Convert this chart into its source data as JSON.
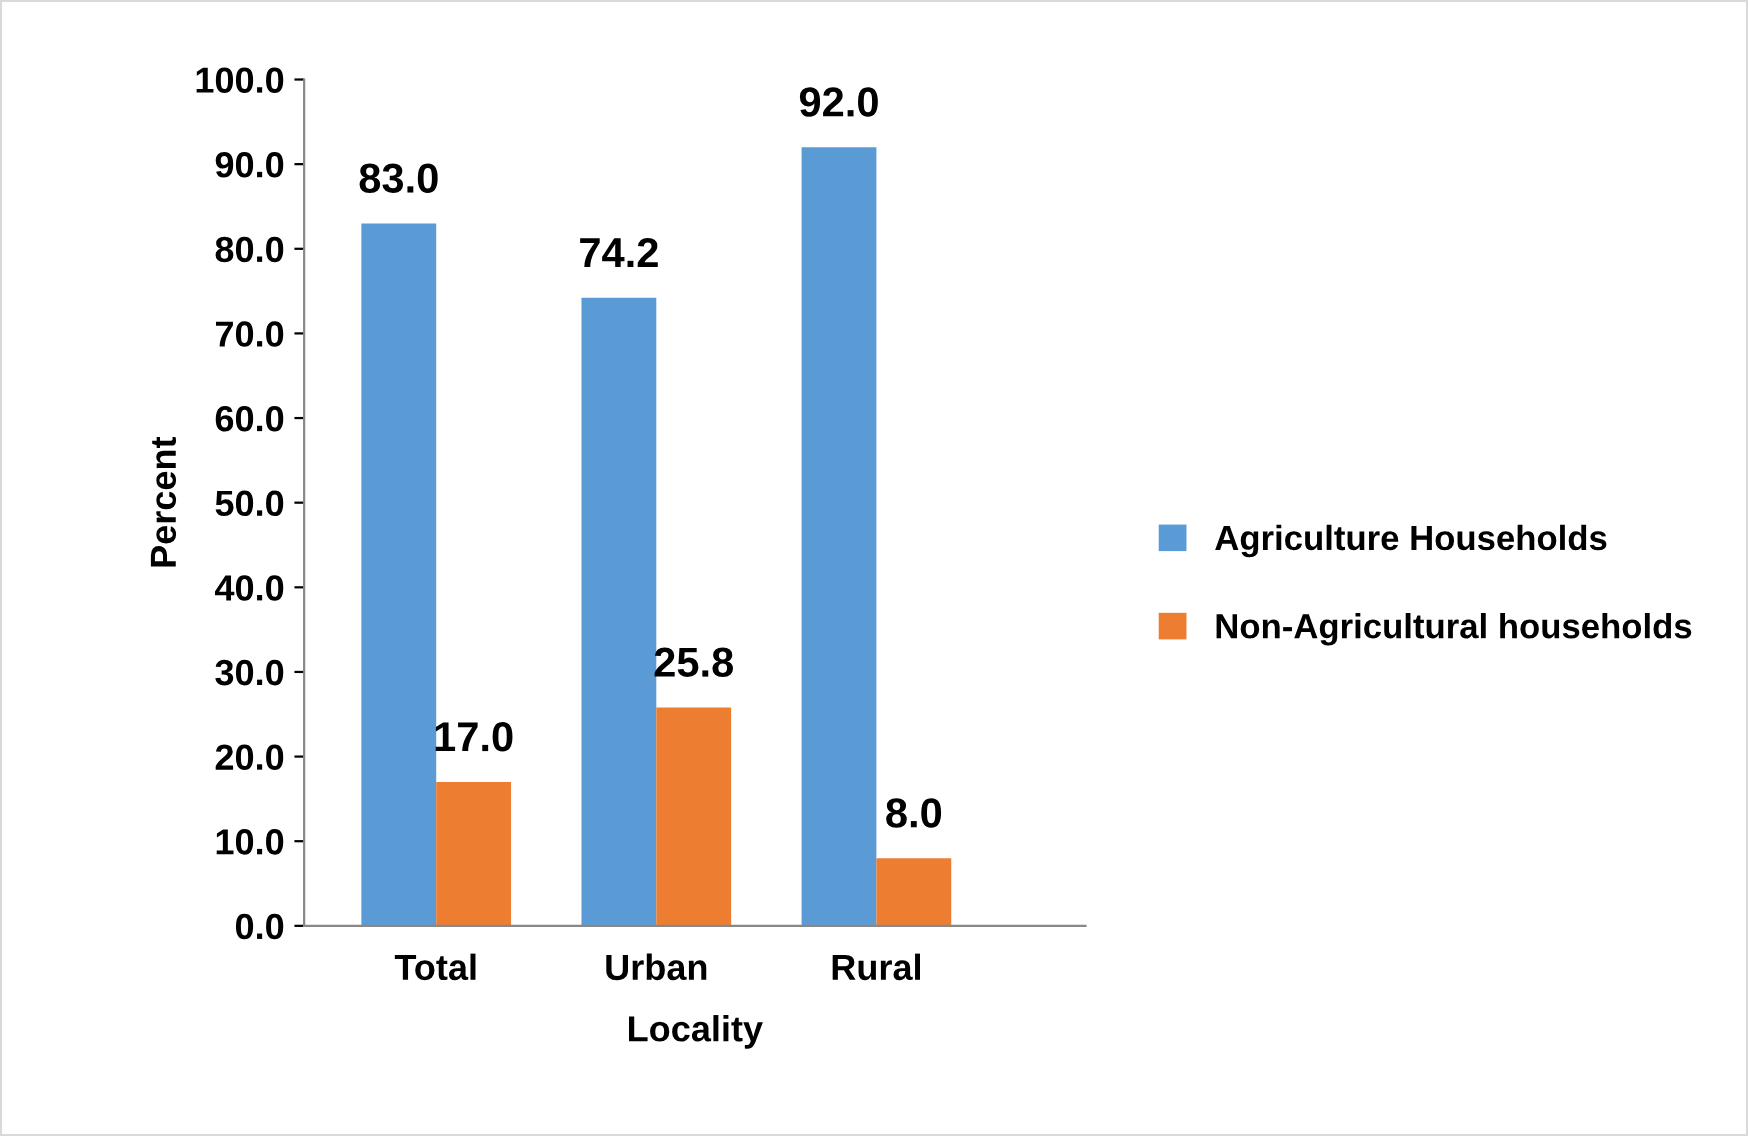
{
  "chart_data": {
    "type": "bar",
    "xlabel": "Locality",
    "ylabel": "Percent",
    "categories": [
      "Total",
      "Urban",
      "Rural"
    ],
    "series": [
      {
        "name": "Agriculture Households",
        "color": "#5b9bd5",
        "values": [
          83.0,
          74.2,
          92.0
        ],
        "value_labels": [
          "83.0",
          "74.2",
          "92.0"
        ]
      },
      {
        "name": "Non-Agricultural households",
        "color": "#ed7d31",
        "values": [
          17.0,
          25.8,
          8.0
        ],
        "value_labels": [
          "17.0",
          "25.8",
          "8.0"
        ]
      }
    ],
    "ylim": [
      0,
      100
    ],
    "yticks": [
      {
        "value": 0,
        "label": "0.0"
      },
      {
        "value": 10,
        "label": "10.0"
      },
      {
        "value": 20,
        "label": "20.0"
      },
      {
        "value": 30,
        "label": "30.0"
      },
      {
        "value": 40,
        "label": "40.0"
      },
      {
        "value": 50,
        "label": "50.0"
      },
      {
        "value": 60,
        "label": "60.0"
      },
      {
        "value": 70,
        "label": "70.0"
      },
      {
        "value": 80,
        "label": "80.0"
      },
      {
        "value": 90,
        "label": "90.0"
      },
      {
        "value": 100,
        "label": "100.0"
      }
    ],
    "grid": false,
    "legend": "right"
  }
}
